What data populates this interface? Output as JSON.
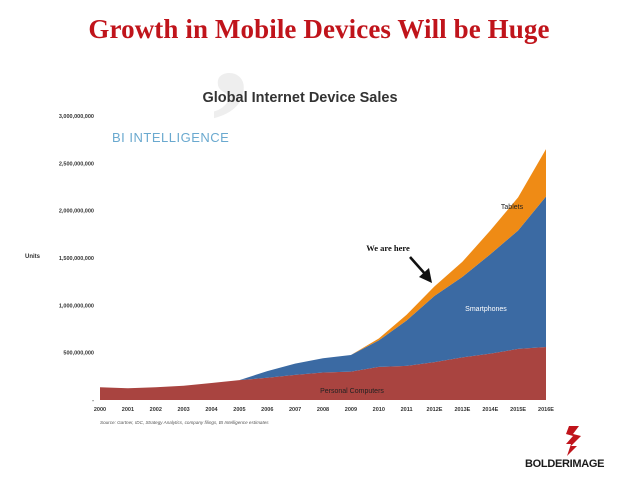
{
  "slide": {
    "title": "Growth in Mobile Devices Will be Huge"
  },
  "logo": {
    "text": "BOLDERIMAGE",
    "icon": "bolder-image-logo-icon",
    "color": "#c0141b"
  },
  "chart_data": {
    "type": "area",
    "stacked": true,
    "title": "Global Internet Device Sales",
    "brand": "BI INTELLIGENCE",
    "ylabel": "Units",
    "xlabel": "",
    "categories": [
      "2000",
      "2001",
      "2002",
      "2003",
      "2004",
      "2005",
      "2006",
      "2007",
      "2008",
      "2009",
      "2010",
      "2011",
      "2012E",
      "2013E",
      "2014E",
      "2015E",
      "2016E"
    ],
    "ylim": [
      0,
      3000000000
    ],
    "yticks": [
      0,
      500000000,
      1000000000,
      1500000000,
      2000000000,
      2500000000,
      3000000000
    ],
    "ytick_labels": [
      "-",
      "500,000,000",
      "1,000,000,000",
      "1,500,000,000",
      "2,000,000,000",
      "2,500,000,000",
      "3,000,000,000"
    ],
    "series": [
      {
        "name": "Personal Computers",
        "color": "#a94440",
        "values": [
          135000000,
          125000000,
          135000000,
          150000000,
          180000000,
          210000000,
          235000000,
          265000000,
          290000000,
          300000000,
          350000000,
          360000000,
          400000000,
          450000000,
          490000000,
          540000000,
          560000000
        ]
      },
      {
        "name": "Smartphones",
        "color": "#3b6aa3",
        "values": [
          0,
          0,
          0,
          0,
          0,
          0,
          70000000,
          120000000,
          150000000,
          175000000,
          280000000,
          480000000,
          700000000,
          850000000,
          1050000000,
          1250000000,
          1590000000
        ]
      },
      {
        "name": "Tablets",
        "color": "#ef8b15",
        "values": [
          0,
          0,
          0,
          0,
          0,
          0,
          0,
          0,
          0,
          0,
          20000000,
          60000000,
          100000000,
          160000000,
          250000000,
          350000000,
          500000000
        ]
      }
    ],
    "annotations": [
      {
        "text": "We are here",
        "arrow": true,
        "target": "2011"
      }
    ],
    "source": "Source: Gartner, IDC, Strategy Analytics, company filings, BI Intelligence estimates",
    "grid": false,
    "legend": "none"
  }
}
